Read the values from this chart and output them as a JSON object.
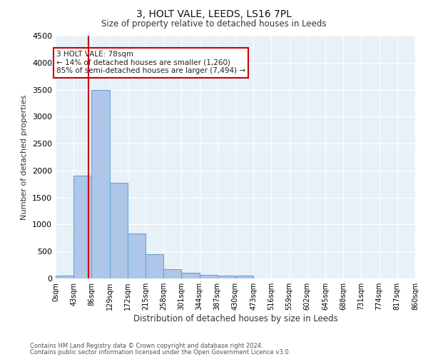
{
  "title1": "3, HOLT VALE, LEEDS, LS16 7PL",
  "title2": "Size of property relative to detached houses in Leeds",
  "xlabel": "Distribution of detached houses by size in Leeds",
  "ylabel": "Number of detached properties",
  "bins": [
    "0sqm",
    "43sqm",
    "86sqm",
    "129sqm",
    "172sqm",
    "215sqm",
    "258sqm",
    "301sqm",
    "344sqm",
    "387sqm",
    "430sqm",
    "473sqm",
    "516sqm",
    "559sqm",
    "602sqm",
    "645sqm",
    "688sqm",
    "731sqm",
    "774sqm",
    "817sqm",
    "860sqm"
  ],
  "bar_values": [
    50,
    1900,
    3500,
    1780,
    830,
    450,
    170,
    100,
    65,
    50,
    50,
    0,
    0,
    0,
    0,
    0,
    0,
    0,
    0,
    0
  ],
  "bar_color": "#aec6e8",
  "bar_edge_color": "#5a9fd4",
  "plot_bg_color": "#e8f0f8",
  "fig_bg_color": "#ffffff",
  "grid_color": "#ffffff",
  "red_line_x": 78,
  "bin_width": 43,
  "ylim": [
    0,
    4500
  ],
  "yticks": [
    0,
    500,
    1000,
    1500,
    2000,
    2500,
    3000,
    3500,
    4000,
    4500
  ],
  "annotation_text": "3 HOLT VALE: 78sqm\n← 14% of detached houses are smaller (1,260)\n85% of semi-detached houses are larger (7,494) →",
  "annotation_box_color": "#ffffff",
  "annotation_box_edge": "#cc0000",
  "footnote1": "Contains HM Land Registry data © Crown copyright and database right 2024.",
  "footnote2": "Contains public sector information licensed under the Open Government Licence v3.0."
}
